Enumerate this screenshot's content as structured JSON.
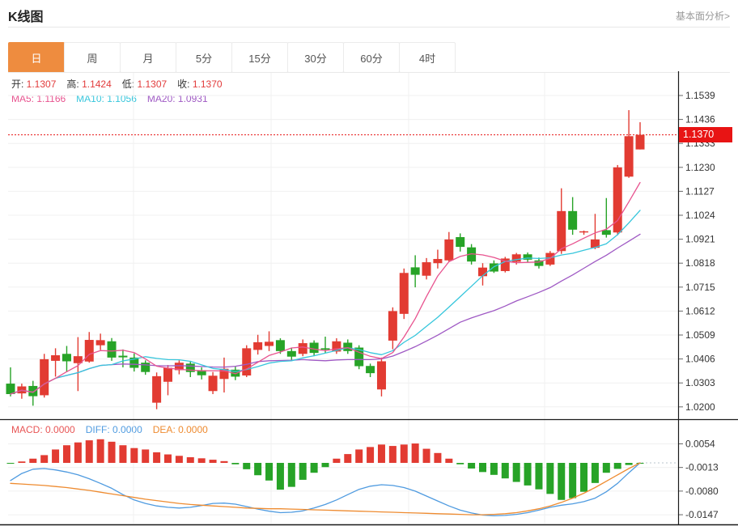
{
  "header": {
    "title": "K线图",
    "analysis_link": "基本面分析>"
  },
  "tabs": {
    "active_index": 0,
    "items": [
      {
        "label": "日"
      },
      {
        "label": "周"
      },
      {
        "label": "月"
      },
      {
        "label": "5分"
      },
      {
        "label": "15分"
      },
      {
        "label": "30分"
      },
      {
        "label": "60分"
      },
      {
        "label": "4时"
      }
    ]
  },
  "kline_legend": {
    "ohlc": [
      {
        "label": "开:",
        "value": "1.1307"
      },
      {
        "label": "高:",
        "value": "1.1424"
      },
      {
        "label": "低:",
        "value": "1.1307"
      },
      {
        "label": "收:",
        "value": "1.1370"
      }
    ],
    "ma": [
      {
        "label": "MA5:",
        "value": "1.1166",
        "color": "#e8538f"
      },
      {
        "label": "MA10:",
        "value": "1.1056",
        "color": "#36c6dc"
      },
      {
        "label": "MA20:",
        "value": "1.0931",
        "color": "#9f59c4"
      }
    ]
  },
  "macd_legend": [
    {
      "label": "MACD:",
      "value": "0.0000",
      "color": "#e85555"
    },
    {
      "label": "DIFF:",
      "value": "0.0000",
      "color": "#4f9be0"
    },
    {
      "label": "DEA:",
      "value": "0.0000",
      "color": "#ee8b30"
    }
  ],
  "last_price": "1.1370",
  "colors": {
    "up": "#e23b32",
    "down": "#27a327",
    "ma5": "#e8538f",
    "ma10": "#36c6dc",
    "ma20": "#9f59c4",
    "diff": "#4f9be0",
    "dea": "#ee8b30",
    "badge": "#e81414",
    "tab_active": "#ee8c3f",
    "legend_label": "#333",
    "legend_value": "#e23b3b",
    "grid": "#f0f0f0",
    "axis": "#1a1a1a",
    "tick_text": "#333",
    "zero_dotted": "#b8c4cc"
  },
  "chart_data": [
    {
      "type": "candlestick",
      "title": "K线图",
      "period_selected": "日",
      "y_ticks": [
        1.1539,
        1.1436,
        1.1333,
        1.123,
        1.1127,
        1.1024,
        1.0921,
        1.0818,
        1.0715,
        1.0612,
        1.0509,
        1.0406,
        1.0303,
        1.02
      ],
      "last_price": 1.137,
      "ma_periods": [
        5,
        10,
        20
      ],
      "ohlc_last": {
        "open": 1.1307,
        "high": 1.1424,
        "low": 1.1307,
        "close": 1.137
      },
      "candles": [
        [
          1.03,
          1.037,
          1.0245,
          1.0255
        ],
        [
          1.0258,
          1.03,
          1.0235,
          1.0288
        ],
        [
          1.029,
          1.0312,
          1.0205,
          1.0246
        ],
        [
          1.025,
          1.0428,
          1.024,
          1.0405
        ],
        [
          1.0398,
          1.0452,
          1.033,
          1.0422
        ],
        [
          1.0428,
          1.0462,
          1.035,
          1.0396
        ],
        [
          1.0388,
          1.05,
          1.0268,
          1.0418
        ],
        [
          1.0395,
          1.0522,
          1.039,
          1.0488
        ],
        [
          1.0465,
          1.0515,
          1.0445,
          1.0487
        ],
        [
          1.0482,
          1.0496,
          1.0398,
          1.0412
        ],
        [
          1.042,
          1.0447,
          1.037,
          1.0413
        ],
        [
          1.0412,
          1.043,
          1.0352,
          1.0368
        ],
        [
          1.039,
          1.04,
          1.0338,
          1.035
        ],
        [
          1.0218,
          1.0348,
          1.019,
          1.0332
        ],
        [
          1.0308,
          1.038,
          1.025,
          1.0368
        ],
        [
          1.0358,
          1.04,
          1.034,
          1.039
        ],
        [
          1.0386,
          1.0398,
          1.0328,
          1.035
        ],
        [
          1.0358,
          1.037,
          1.0318,
          1.0336
        ],
        [
          1.0268,
          1.035,
          1.0255,
          1.0334
        ],
        [
          1.032,
          1.0412,
          1.0262,
          1.0364
        ],
        [
          1.036,
          1.0375,
          1.0315,
          1.033
        ],
        [
          1.0335,
          1.0465,
          1.0328,
          1.0452
        ],
        [
          1.0445,
          1.051,
          1.0425,
          1.0478
        ],
        [
          1.0462,
          1.0525,
          1.044,
          1.048
        ],
        [
          1.0487,
          1.0495,
          1.0428,
          1.044
        ],
        [
          1.044,
          1.0452,
          1.0398,
          1.0416
        ],
        [
          1.0428,
          1.049,
          1.0418,
          1.0474
        ],
        [
          1.0476,
          1.0486,
          1.0418,
          1.0432
        ],
        [
          1.0452,
          1.0502,
          1.0432,
          1.0446
        ],
        [
          1.0438,
          1.0495,
          1.0428,
          1.0482
        ],
        [
          1.0476,
          1.049,
          1.0428,
          1.044
        ],
        [
          1.0455,
          1.0465,
          1.0362,
          1.0375
        ],
        [
          1.0376,
          1.0386,
          1.0328,
          1.0345
        ],
        [
          1.0275,
          1.0412,
          1.0245,
          1.0396
        ],
        [
          1.0485,
          1.0628,
          1.0448,
          1.0612
        ],
        [
          1.06,
          1.0795,
          1.0578,
          1.0776
        ],
        [
          1.08,
          1.0852,
          1.0714,
          1.0768
        ],
        [
          1.0764,
          1.084,
          1.0748,
          1.0822
        ],
        [
          1.0818,
          1.0876,
          1.0795,
          1.0836
        ],
        [
          1.083,
          1.0952,
          1.0824,
          1.092
        ],
        [
          1.093,
          1.0946,
          1.0868,
          1.0888
        ],
        [
          1.0886,
          1.09,
          1.0812,
          1.0825
        ],
        [
          1.0762,
          1.0818,
          1.0722,
          1.0799
        ],
        [
          1.0817,
          1.083,
          1.0776,
          1.0782
        ],
        [
          1.0784,
          1.0845,
          1.0778,
          1.0838
        ],
        [
          1.0824,
          1.0862,
          1.0812,
          1.0856
        ],
        [
          1.0856,
          1.0864,
          1.0822,
          1.0833
        ],
        [
          1.083,
          1.0842,
          1.0795,
          1.0806
        ],
        [
          1.0812,
          1.087,
          1.0806,
          1.0862
        ],
        [
          1.087,
          1.114,
          1.0858,
          1.1042
        ],
        [
          1.1042,
          1.1102,
          1.094,
          1.0962
        ],
        [
          1.095,
          1.0958,
          1.094,
          1.0955
        ],
        [
          1.0884,
          1.103,
          1.0878,
          1.092
        ],
        [
          1.096,
          1.1098,
          1.0928,
          1.094
        ],
        [
          1.095,
          1.124,
          1.0938,
          1.123
        ],
        [
          1.119,
          1.1476,
          1.1185,
          1.1364
        ],
        [
          1.1307,
          1.1424,
          1.1307,
          1.137
        ]
      ]
    },
    {
      "type": "macd",
      "y_ticks": [
        0.0054,
        -0.0013,
        -0.008,
        -0.0147
      ],
      "values": {
        "macd": 0.0,
        "diff": 0.0,
        "dea": 0.0
      },
      "hist": [
        -0.0001,
        0.0004,
        0.0012,
        0.0022,
        0.0038,
        0.005,
        0.0058,
        0.0064,
        0.0067,
        0.006,
        0.005,
        0.0042,
        0.0038,
        0.003,
        0.0024,
        0.002,
        0.0016,
        0.0013,
        0.0009,
        0.0005,
        -0.0004,
        -0.0018,
        -0.0035,
        -0.005,
        -0.0076,
        -0.0068,
        -0.0048,
        -0.0028,
        -0.0012,
        0.0012,
        0.0025,
        0.0038,
        0.0045,
        0.0052,
        0.0048,
        0.0052,
        0.0055,
        0.004,
        0.0028,
        0.0012,
        -0.0004,
        -0.0016,
        -0.0026,
        -0.0034,
        -0.0044,
        -0.0054,
        -0.0064,
        -0.0075,
        -0.0088,
        -0.0105,
        -0.01,
        -0.0082,
        -0.0057,
        -0.0028,
        -0.0017,
        -0.0006,
        -0.0001
      ],
      "diff": [
        -0.005,
        -0.003,
        -0.0018,
        -0.0016,
        -0.002,
        -0.0026,
        -0.0034,
        -0.0045,
        -0.0058,
        -0.0072,
        -0.009,
        -0.0105,
        -0.0115,
        -0.0122,
        -0.0126,
        -0.0128,
        -0.0126,
        -0.0121,
        -0.0115,
        -0.0114,
        -0.0117,
        -0.0124,
        -0.0131,
        -0.0137,
        -0.0141,
        -0.014,
        -0.0136,
        -0.0128,
        -0.0118,
        -0.0105,
        -0.009,
        -0.0075,
        -0.0066,
        -0.0062,
        -0.0064,
        -0.007,
        -0.008,
        -0.0094,
        -0.0108,
        -0.0122,
        -0.0134,
        -0.0142,
        -0.0148,
        -0.015,
        -0.0149,
        -0.0146,
        -0.0141,
        -0.0134,
        -0.0126,
        -0.012,
        -0.0116,
        -0.011,
        -0.01,
        -0.0082,
        -0.0058,
        -0.0028,
        0.0
      ],
      "dea": [
        -0.0058,
        -0.006,
        -0.0062,
        -0.0064,
        -0.0067,
        -0.007,
        -0.0074,
        -0.0078,
        -0.0083,
        -0.0088,
        -0.0093,
        -0.0098,
        -0.0103,
        -0.0107,
        -0.0111,
        -0.0115,
        -0.0118,
        -0.012,
        -0.0122,
        -0.0124,
        -0.0126,
        -0.0128,
        -0.0129,
        -0.013,
        -0.013,
        -0.0131,
        -0.0132,
        -0.0133,
        -0.0134,
        -0.0135,
        -0.0136,
        -0.0137,
        -0.0138,
        -0.0139,
        -0.014,
        -0.0141,
        -0.0142,
        -0.0143,
        -0.0144,
        -0.0145,
        -0.0146,
        -0.0147,
        -0.0147,
        -0.0146,
        -0.0144,
        -0.0141,
        -0.0136,
        -0.013,
        -0.0122,
        -0.0112,
        -0.01,
        -0.0086,
        -0.007,
        -0.0052,
        -0.0034,
        -0.0016,
        0.0
      ]
    }
  ]
}
